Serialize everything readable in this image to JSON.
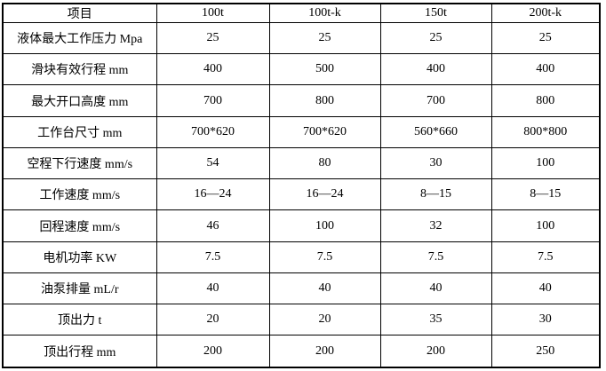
{
  "colors": {
    "background": "#ffffff",
    "border": "#000000",
    "text": "#000000"
  },
  "table": {
    "header": [
      "项目",
      "100t",
      "100t-k",
      "150t",
      "200t-k"
    ],
    "rows": [
      {
        "label": "液体最大工作压力 Mpa",
        "values": [
          "25",
          "25",
          "25",
          "25"
        ]
      },
      {
        "label": "滑块有效行程 mm",
        "values": [
          "400",
          "500",
          "400",
          "400"
        ]
      },
      {
        "label": "最大开口高度 mm",
        "values": [
          "700",
          "800",
          "700",
          "800"
        ]
      },
      {
        "label": "工作台尺寸 mm",
        "values": [
          "700*620",
          "700*620",
          "560*660",
          "800*800"
        ]
      },
      {
        "label": "空程下行速度 mm/s",
        "values": [
          "54",
          "80",
          "30",
          "100"
        ]
      },
      {
        "label": "工作速度 mm/s",
        "values": [
          "16—24",
          "16—24",
          "8—15",
          "8—15"
        ]
      },
      {
        "label": "回程速度 mm/s",
        "values": [
          "46",
          "100",
          "32",
          "100"
        ]
      },
      {
        "label": "电机功率 KW",
        "values": [
          "7.5",
          "7.5",
          "7.5",
          "7.5"
        ]
      },
      {
        "label": "油泵排量 mL/r",
        "values": [
          "40",
          "40",
          "40",
          "40"
        ]
      },
      {
        "label": "顶出力 t",
        "values": [
          "20",
          "20",
          "35",
          "30"
        ]
      },
      {
        "label": "顶出行程 mm",
        "values": [
          "200",
          "200",
          "200",
          "250"
        ]
      }
    ]
  },
  "chart_data": {
    "type": "table",
    "title": "",
    "columns": [
      "项目",
      "100t",
      "100t-k",
      "150t",
      "200t-k"
    ],
    "rows": [
      [
        "液体最大工作压力 Mpa",
        "25",
        "25",
        "25",
        "25"
      ],
      [
        "滑块有效行程 mm",
        "400",
        "500",
        "400",
        "400"
      ],
      [
        "最大开口高度 mm",
        "700",
        "800",
        "700",
        "800"
      ],
      [
        "工作台尺寸 mm",
        "700*620",
        "700*620",
        "560*660",
        "800*800"
      ],
      [
        "空程下行速度 mm/s",
        "54",
        "80",
        "30",
        "100"
      ],
      [
        "工作速度 mm/s",
        "16—24",
        "16—24",
        "8—15",
        "8—15"
      ],
      [
        "回程速度 mm/s",
        "46",
        "100",
        "32",
        "100"
      ],
      [
        "电机功率 KW",
        "7.5",
        "7.5",
        "7.5",
        "7.5"
      ],
      [
        "油泵排量 mL/r",
        "40",
        "40",
        "40",
        "40"
      ],
      [
        "顶出力 t",
        "20",
        "20",
        "35",
        "30"
      ],
      [
        "顶出行程 mm",
        "200",
        "200",
        "200",
        "250"
      ]
    ]
  }
}
